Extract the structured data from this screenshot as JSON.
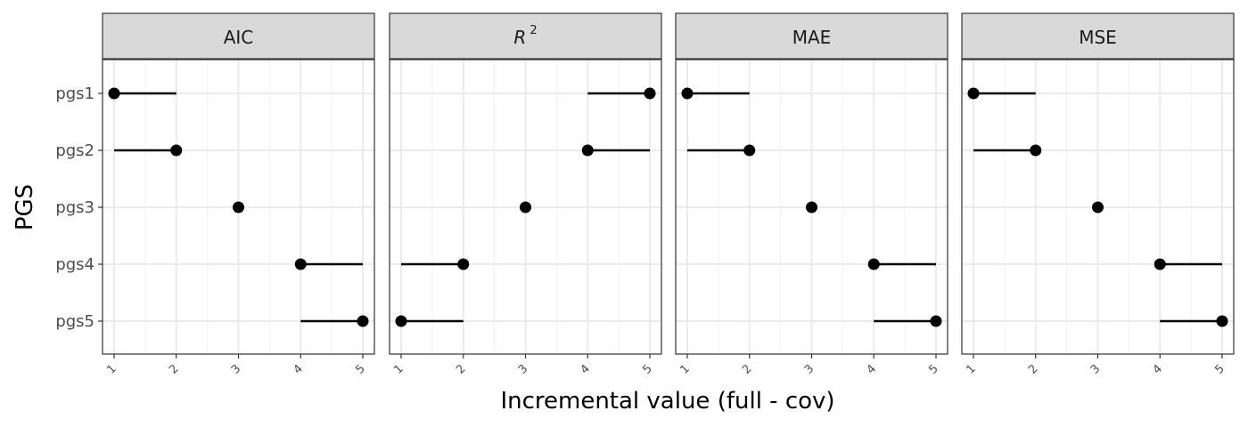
{
  "chart_data": {
    "type": "dumbbell-facet",
    "xlabel": "Incremental value (full - cov)",
    "ylabel": "PGS",
    "categories": [
      "pgs1",
      "pgs2",
      "pgs3",
      "pgs4",
      "pgs5"
    ],
    "xlim": [
      1,
      5
    ],
    "x_ticks": [
      "1",
      "2",
      "3",
      "4",
      "5"
    ],
    "grid": true,
    "panels": [
      {
        "title": "AIC",
        "title_main": "",
        "title_sup": "",
        "points": [
          {
            "category": "pgs1",
            "value": 1,
            "from": 2
          },
          {
            "category": "pgs2",
            "value": 2,
            "from": 1
          },
          {
            "category": "pgs3",
            "value": 3,
            "from": 3
          },
          {
            "category": "pgs4",
            "value": 4,
            "from": 5
          },
          {
            "category": "pgs5",
            "value": 5,
            "from": 4
          }
        ]
      },
      {
        "title": "",
        "title_main": "R",
        "title_sup": "2",
        "points": [
          {
            "category": "pgs1",
            "value": 5,
            "from": 4
          },
          {
            "category": "pgs2",
            "value": 4,
            "from": 5
          },
          {
            "category": "pgs3",
            "value": 3,
            "from": 3
          },
          {
            "category": "pgs4",
            "value": 2,
            "from": 1
          },
          {
            "category": "pgs5",
            "value": 1,
            "from": 2
          }
        ]
      },
      {
        "title": "MAE",
        "title_main": "",
        "title_sup": "",
        "points": [
          {
            "category": "pgs1",
            "value": 1,
            "from": 2
          },
          {
            "category": "pgs2",
            "value": 2,
            "from": 1
          },
          {
            "category": "pgs3",
            "value": 3,
            "from": 3
          },
          {
            "category": "pgs4",
            "value": 4,
            "from": 5
          },
          {
            "category": "pgs5",
            "value": 5,
            "from": 4
          }
        ]
      },
      {
        "title": "MSE",
        "title_main": "",
        "title_sup": "",
        "points": [
          {
            "category": "pgs1",
            "value": 1,
            "from": 2
          },
          {
            "category": "pgs2",
            "value": 2,
            "from": 1
          },
          {
            "category": "pgs3",
            "value": 3,
            "from": 3
          },
          {
            "category": "pgs4",
            "value": 4,
            "from": 5
          },
          {
            "category": "pgs5",
            "value": 5,
            "from": 4
          }
        ]
      }
    ]
  }
}
